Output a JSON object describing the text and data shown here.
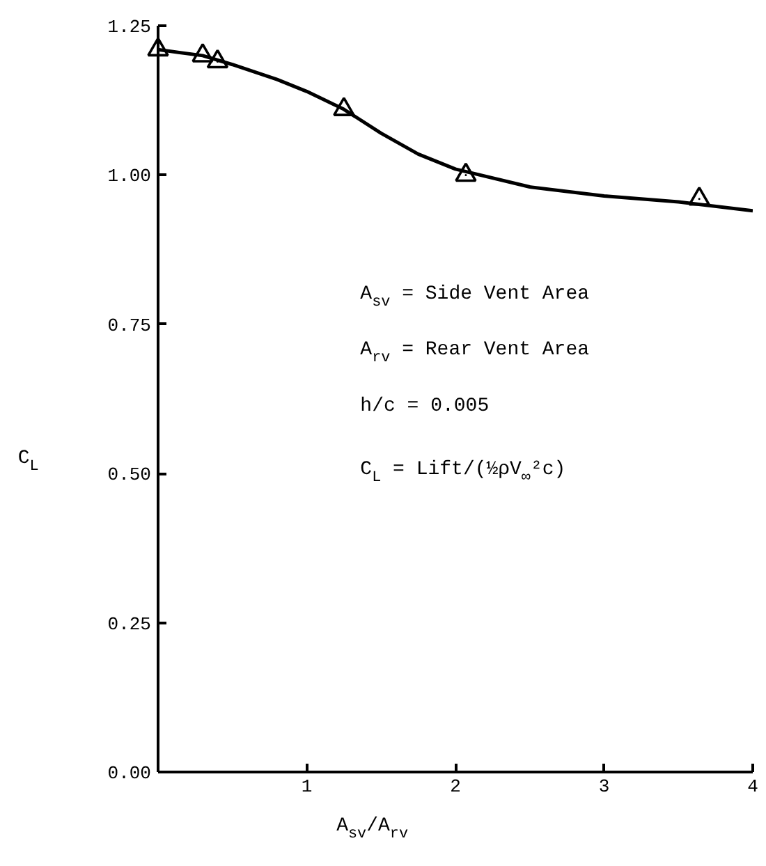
{
  "chart_data": {
    "type": "line",
    "xlabel": "A$_{sv}$/A$_{rv}$",
    "ylabel": "C$_{L}$",
    "xlim": [
      0,
      4
    ],
    "ylim": [
      0,
      1.25
    ],
    "xticks": [
      1,
      2,
      3,
      4
    ],
    "yticks": [
      {
        "value": 0,
        "label": "0.00"
      },
      {
        "value": 0.25,
        "label": "0.25"
      },
      {
        "value": 0.5,
        "label": "0.50"
      },
      {
        "value": 0.75,
        "label": "0.75"
      },
      {
        "value": 1.0,
        "label": "1.00"
      },
      {
        "value": 1.25,
        "label": "1.25"
      }
    ],
    "grid": false,
    "series": [
      {
        "type": "line",
        "color": "#000000",
        "marker": "none",
        "line_style": "solid",
        "x": [
          0,
          0.3,
          0.5,
          0.8,
          1.0,
          1.25,
          1.5,
          1.75,
          2.0,
          2.5,
          3.0,
          3.5,
          4.0
        ],
        "values": [
          1.21,
          1.2,
          1.185,
          1.16,
          1.14,
          1.11,
          1.07,
          1.035,
          1.01,
          0.98,
          0.965,
          0.955,
          0.94
        ]
      },
      {
        "type": "scatter",
        "color": "#000000",
        "marker": "triangle",
        "x": [
          0,
          0.3,
          0.4,
          1.25,
          2.07,
          3.64
        ],
        "values": [
          1.21,
          1.2,
          1.19,
          1.11,
          1.0,
          0.96
        ]
      }
    ],
    "annotations": [
      "A$_{sv}$ = Side Vent Area",
      "A$_{rv}$ = Rear Vent Area",
      "h/c = 0.005",
      "C$_{L}$ = Lift/(½ρV$_{∞}$²c)"
    ]
  }
}
